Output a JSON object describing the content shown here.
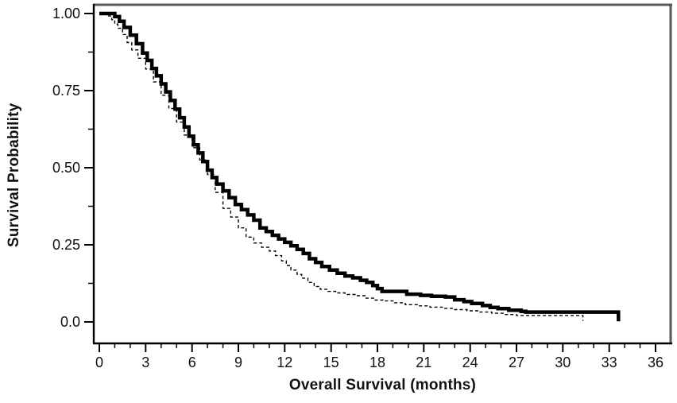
{
  "figure": {
    "background": "#ffffff",
    "frame_color": "#595959",
    "axis_color": "#000000",
    "text_color": "#111111"
  },
  "chart_data": {
    "type": "line",
    "subtype": "kaplan-meier-step",
    "title": "",
    "xlabel": "Overall Survival (months)",
    "ylabel": "Survival Probability",
    "xlim": [
      0,
      36
    ],
    "ylim": [
      0,
      1
    ],
    "grid": false,
    "legend_position": "none",
    "x_major_ticks": [
      0,
      3,
      6,
      9,
      12,
      15,
      18,
      21,
      24,
      27,
      30,
      33,
      36
    ],
    "x_tick_labels": [
      "0",
      "3",
      "6",
      "9",
      "12",
      "15",
      "18",
      "21",
      "24",
      "27",
      "30",
      "33",
      "36"
    ],
    "x_minor_ticks": [
      1,
      2,
      4,
      5,
      7,
      8,
      10,
      11,
      13,
      14,
      16,
      17,
      19,
      20,
      22,
      23,
      25,
      26,
      28,
      29,
      31,
      32,
      34,
      35
    ],
    "y_major_ticks": [
      0,
      0.25,
      0.5,
      0.75,
      1.0
    ],
    "y_tick_labels": [
      "0.0",
      "0.25",
      "0.50",
      "0.75",
      "1.00"
    ],
    "y_minor_ticks": [
      0.125,
      0.375,
      0.625,
      0.875
    ],
    "series": [
      {
        "name": "dashed thin curve",
        "line_style": "dashed",
        "stroke_width": 1.4,
        "color": "#000000",
        "points": [
          [
            0,
            1.0
          ],
          [
            0.5,
            0.992
          ],
          [
            0.8,
            0.98
          ],
          [
            1.0,
            0.966
          ],
          [
            1.2,
            0.952
          ],
          [
            1.5,
            0.932
          ],
          [
            1.8,
            0.906
          ],
          [
            2.1,
            0.882
          ],
          [
            2.5,
            0.855
          ],
          [
            3.0,
            0.82
          ],
          [
            3.5,
            0.778
          ],
          [
            4.0,
            0.735
          ],
          [
            4.5,
            0.692
          ],
          [
            5.0,
            0.648
          ],
          [
            5.5,
            0.606
          ],
          [
            6.0,
            0.565
          ],
          [
            6.5,
            0.525
          ],
          [
            7.0,
            0.478
          ],
          [
            7.5,
            0.42
          ],
          [
            8.0,
            0.368
          ],
          [
            8.5,
            0.34
          ],
          [
            9.0,
            0.305
          ],
          [
            9.5,
            0.275
          ],
          [
            10.0,
            0.256
          ],
          [
            10.5,
            0.242
          ],
          [
            11.0,
            0.23
          ],
          [
            11.4,
            0.215
          ],
          [
            11.8,
            0.198
          ],
          [
            12.1,
            0.183
          ],
          [
            12.4,
            0.168
          ],
          [
            12.8,
            0.154
          ],
          [
            13.1,
            0.142
          ],
          [
            13.5,
            0.128
          ],
          [
            13.9,
            0.115
          ],
          [
            14.3,
            0.106
          ],
          [
            14.8,
            0.099
          ],
          [
            15.3,
            0.094
          ],
          [
            15.9,
            0.089
          ],
          [
            16.6,
            0.085
          ],
          [
            17.2,
            0.077
          ],
          [
            17.8,
            0.071
          ],
          [
            18.4,
            0.068
          ],
          [
            19.1,
            0.062
          ],
          [
            19.8,
            0.056
          ],
          [
            20.6,
            0.052
          ],
          [
            21.4,
            0.048
          ],
          [
            22.2,
            0.044
          ],
          [
            23.0,
            0.04
          ],
          [
            23.8,
            0.036
          ],
          [
            24.6,
            0.032
          ],
          [
            25.4,
            0.028
          ],
          [
            26.2,
            0.024
          ],
          [
            27.0,
            0.021
          ],
          [
            31.3,
            0.021
          ],
          [
            31.3,
            0.003
          ]
        ]
      },
      {
        "name": "solid thick curve",
        "line_style": "solid",
        "stroke_width": 4.5,
        "color": "#000000",
        "points": [
          [
            0,
            1.0
          ],
          [
            0.9,
            1.0
          ],
          [
            1.0,
            0.99
          ],
          [
            1.3,
            0.975
          ],
          [
            1.6,
            0.955
          ],
          [
            2.0,
            0.93
          ],
          [
            2.4,
            0.902
          ],
          [
            2.8,
            0.872
          ],
          [
            3.1,
            0.848
          ],
          [
            3.4,
            0.822
          ],
          [
            3.7,
            0.798
          ],
          [
            4.0,
            0.772
          ],
          [
            4.3,
            0.746
          ],
          [
            4.6,
            0.718
          ],
          [
            4.9,
            0.69
          ],
          [
            5.2,
            0.662
          ],
          [
            5.5,
            0.632
          ],
          [
            5.8,
            0.602
          ],
          [
            6.1,
            0.574
          ],
          [
            6.4,
            0.548
          ],
          [
            6.7,
            0.52
          ],
          [
            7.0,
            0.492
          ],
          [
            7.3,
            0.468
          ],
          [
            7.6,
            0.447
          ],
          [
            8.0,
            0.425
          ],
          [
            8.4,
            0.403
          ],
          [
            8.8,
            0.381
          ],
          [
            9.2,
            0.364
          ],
          [
            9.6,
            0.347
          ],
          [
            10.0,
            0.33
          ],
          [
            10.4,
            0.305
          ],
          [
            10.8,
            0.293
          ],
          [
            11.2,
            0.281
          ],
          [
            11.6,
            0.269
          ],
          [
            12.0,
            0.258
          ],
          [
            12.4,
            0.247
          ],
          [
            12.8,
            0.235
          ],
          [
            13.2,
            0.222
          ],
          [
            13.6,
            0.205
          ],
          [
            14.0,
            0.193
          ],
          [
            14.4,
            0.18
          ],
          [
            14.9,
            0.168
          ],
          [
            15.4,
            0.158
          ],
          [
            15.9,
            0.149
          ],
          [
            16.4,
            0.143
          ],
          [
            16.9,
            0.135
          ],
          [
            17.3,
            0.128
          ],
          [
            17.7,
            0.118
          ],
          [
            18.0,
            0.108
          ],
          [
            18.3,
            0.099
          ],
          [
            19.9,
            0.09
          ],
          [
            20.8,
            0.086
          ],
          [
            21.5,
            0.083
          ],
          [
            22.4,
            0.081
          ],
          [
            23.0,
            0.072
          ],
          [
            23.6,
            0.066
          ],
          [
            24.1,
            0.06
          ],
          [
            24.8,
            0.053
          ],
          [
            25.3,
            0.047
          ],
          [
            25.8,
            0.043
          ],
          [
            26.5,
            0.038
          ],
          [
            27.3,
            0.034
          ],
          [
            27.6,
            0.032
          ],
          [
            33.6,
            0.032
          ],
          [
            33.6,
            0.002
          ]
        ]
      }
    ]
  }
}
